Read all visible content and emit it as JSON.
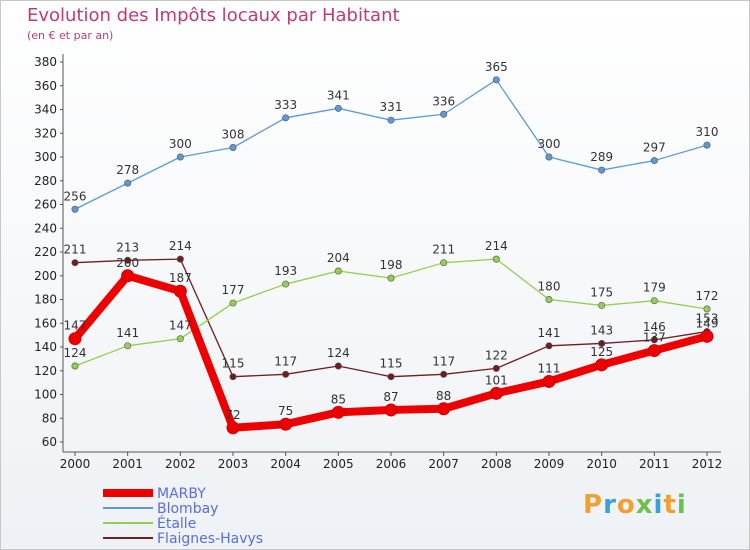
{
  "header": {
    "title": "Evolution des Impôts locaux par Habitant",
    "subtitle": "(en € et par an)"
  },
  "logo": {
    "text": "Proxiti",
    "colors": [
      "#f0a030",
      "#3aa0d8",
      "#f0a030",
      "#6cc04a",
      "#3aa0d8",
      "#f0a030",
      "#6cc04a"
    ]
  },
  "chart_data": {
    "type": "line",
    "title": "Evolution des Impôts locaux par Habitant",
    "subtitle": "(en € et par an)",
    "x": [
      "2000",
      "2001",
      "2002",
      "2003",
      "2004",
      "2005",
      "2006",
      "2007",
      "2008",
      "2009",
      "2010",
      "2011",
      "2012"
    ],
    "ylim": [
      60,
      380
    ],
    "yticks": [
      60,
      80,
      100,
      120,
      140,
      160,
      180,
      200,
      220,
      240,
      260,
      280,
      300,
      320,
      340,
      360,
      380
    ],
    "grid": false,
    "legend": "bottom-left",
    "series": [
      {
        "name": "MARBY",
        "color": "#ee0000",
        "values": [
          147,
          200,
          187,
          72,
          75,
          85,
          87,
          88,
          101,
          111,
          125,
          137,
          149
        ]
      },
      {
        "name": "Blombay",
        "color": "#5b9bd5",
        "values": [
          256,
          278,
          300,
          308,
          333,
          341,
          331,
          336,
          365,
          300,
          289,
          297,
          310
        ]
      },
      {
        "name": "Étalle",
        "color": "#92d050",
        "values": [
          124,
          141,
          147,
          177,
          193,
          204,
          198,
          211,
          214,
          180,
          175,
          179,
          172
        ]
      },
      {
        "name": "Flaignes-Havys",
        "color": "#6b1f1f",
        "values": [
          211,
          213,
          214,
          115,
          117,
          124,
          115,
          117,
          122,
          141,
          143,
          146,
          153
        ]
      }
    ]
  }
}
